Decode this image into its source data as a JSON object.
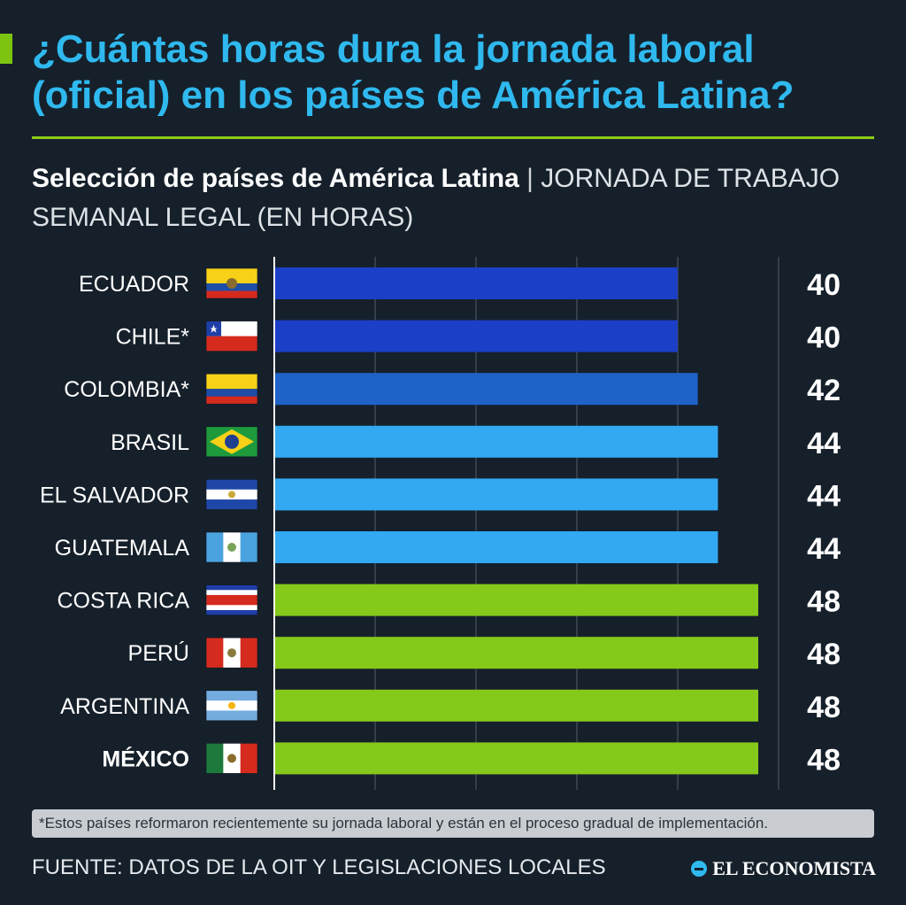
{
  "header": {
    "title": "¿Cuántas horas dura la jornada laboral (oficial) en los países de América Latina?",
    "subtitle_bold": "Selección de países de América Latina",
    "subtitle_separator": "|",
    "subtitle_normal": "JORNADA DE TRABAJO SEMANAL LEGAL (EN HORAS)"
  },
  "chart_data": {
    "type": "bar",
    "orientation": "horizontal",
    "categories": [
      "ECUADOR",
      "CHILE*",
      "COLOMBIA*",
      "BRASIL",
      "EL SALVADOR",
      "GUATEMALA",
      "COSTA RICA",
      "PERÚ",
      "ARGENTINA",
      "MÉXICO"
    ],
    "values": [
      40,
      40,
      42,
      44,
      44,
      44,
      48,
      48,
      48,
      48
    ],
    "value_labels": [
      "40",
      "40",
      "42",
      "44",
      "44",
      "44",
      "48",
      "48",
      "48",
      "48"
    ],
    "highlight_category": "MÉXICO",
    "flags": [
      "flag-ecuador-icon",
      "flag-chile-icon",
      "flag-colombia-icon",
      "flag-brazil-icon",
      "flag-el-salvador-icon",
      "flag-guatemala-icon",
      "flag-costa-rica-icon",
      "flag-peru-icon",
      "flag-argentina-icon",
      "flag-mexico-icon"
    ],
    "bar_colors": [
      "#1c3fc8",
      "#1c3fc8",
      "#1f63c9",
      "#32a9f2",
      "#32a9f2",
      "#32a9f2",
      "#85c91a",
      "#85c91a",
      "#85c91a",
      "#85c91a"
    ],
    "xlim": [
      0,
      48
    ],
    "grid": true
  },
  "footnote": "*Estos países reformaron recientemente su jornada laboral y están en el proceso gradual de implementación.",
  "source": "FUENTE: DATOS DE LA OIT Y LEGISLACIONES LOCALES",
  "brand": "EL ECONOMISTA",
  "colors": {
    "background": "#16202b",
    "title": "#2fb9ee",
    "accent": "#8ccd1a"
  }
}
